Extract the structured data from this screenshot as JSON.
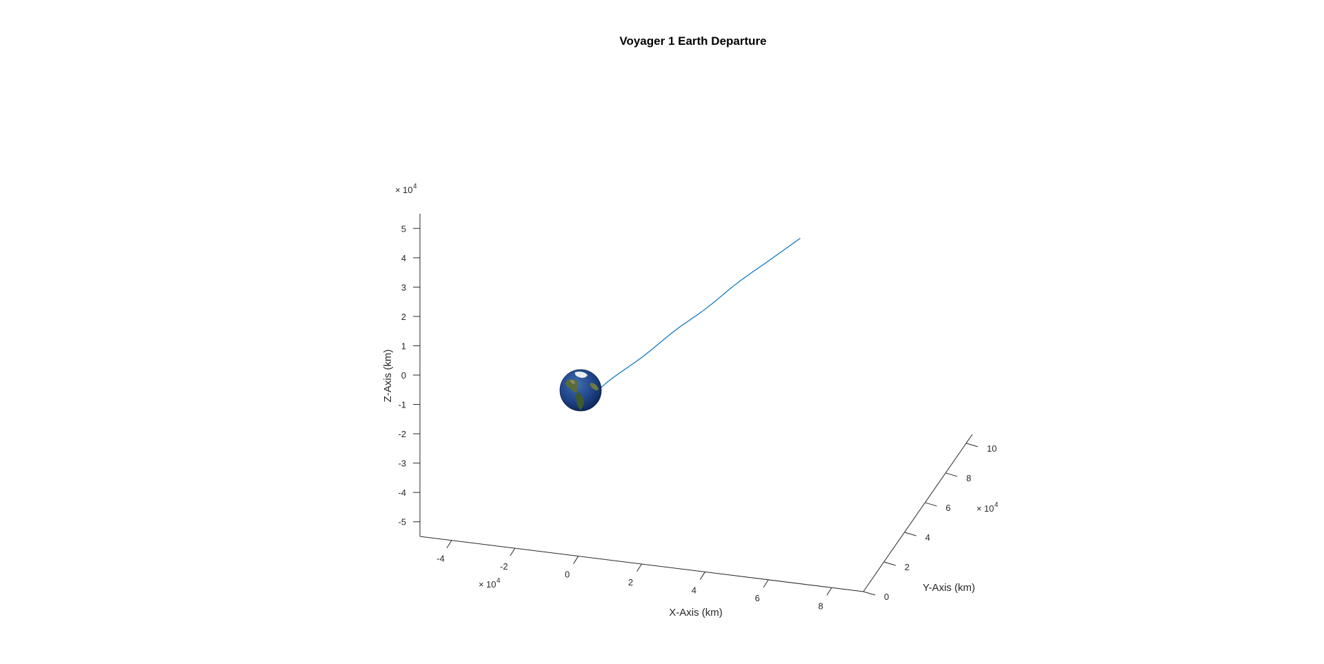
{
  "chart_data": {
    "type": "line",
    "title": "Voyager 1 Earth Departure",
    "xlabel": "X-Axis (km)",
    "ylabel": "Y-Axis (km)",
    "zlabel": "Z-Axis (km)",
    "x_exponent": "10",
    "x_exponent_power": "4",
    "y_exponent": "10",
    "y_exponent_power": "4",
    "z_exponent": "10",
    "z_exponent_power": "4",
    "exponent_prefix": "×",
    "xlim": [
      -5,
      9
    ],
    "ylim": [
      0,
      10
    ],
    "zlim": [
      -5.5,
      5.5
    ],
    "x_ticks": [
      "-4",
      "-2",
      "0",
      "2",
      "4",
      "6",
      "8"
    ],
    "y_ticks": [
      "0",
      "2",
      "4",
      "6",
      "8",
      "10"
    ],
    "z_ticks": [
      "5",
      "4",
      "3",
      "2",
      "1",
      "0",
      "-1",
      "-2",
      "-3",
      "-4",
      "-5"
    ],
    "grid": false,
    "series": [
      {
        "color": "#0072BD",
        "points": [
          {
            "x": 0.4,
            "y": 0.6,
            "z": -0.6
          },
          {
            "x": 1.0,
            "y": 1.2,
            "z": -0.1
          },
          {
            "x": 2.0,
            "y": 2.0,
            "z": 0.6
          },
          {
            "x": 3.0,
            "y": 2.9,
            "z": 1.4
          },
          {
            "x": 4.0,
            "y": 3.8,
            "z": 2.1
          },
          {
            "x": 5.0,
            "y": 4.6,
            "z": 2.9
          },
          {
            "x": 6.0,
            "y": 5.5,
            "z": 3.6
          },
          {
            "x": 7.0,
            "y": 6.4,
            "z": 4.3
          }
        ]
      }
    ],
    "earth": {
      "x": 0,
      "y": 0,
      "z": 0,
      "radius": 0.64
    }
  }
}
